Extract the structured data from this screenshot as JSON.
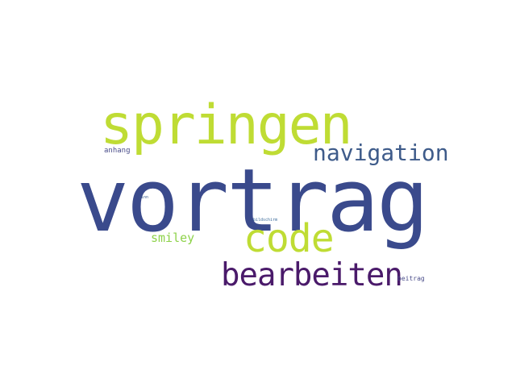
{
  "word_cloud": {
    "words": [
      {
        "text": "vortrag",
        "color": "#3a4a8c",
        "rank": 1
      },
      {
        "text": "springen",
        "color": "#bfdc34",
        "rank": 2
      },
      {
        "text": "code",
        "color": "#bfdc34",
        "rank": 3
      },
      {
        "text": "bearbeiten",
        "color": "#4a1a6a",
        "rank": 4
      },
      {
        "text": "navigation",
        "color": "#3e5b8a",
        "rank": 5
      },
      {
        "text": "smiley",
        "color": "#8ed24a",
        "rank": 6
      },
      {
        "text": "anhang",
        "color": "#4a4d8a",
        "rank": 7
      },
      {
        "text": "beitrag",
        "color": "#4a4d8a",
        "rank": 8
      },
      {
        "text": "sinn",
        "color": "#3a5a8a",
        "rank": 9
      },
      {
        "text": "bildschirm",
        "color": "#3a6a9a",
        "rank": 10
      }
    ],
    "background": "#ffffff"
  }
}
